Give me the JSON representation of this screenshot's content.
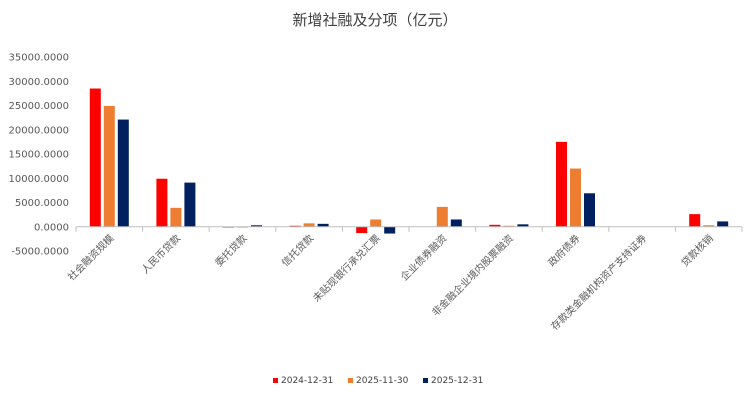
{
  "chart_data": {
    "type": "bar",
    "title": "新增社融及分项（亿元）",
    "xlabel": "",
    "ylabel": "",
    "ylim": [
      -5000,
      35000
    ],
    "yticks": [
      35000,
      30000,
      25000,
      20000,
      15000,
      10000,
      5000,
      0,
      -5000
    ],
    "ytick_labels": [
      "35000.0000",
      "30000.0000",
      "25000.0000",
      "20000.0000",
      "15000.0000",
      "10000.0000",
      "5000.0000",
      "0.0000",
      "-5000.0000"
    ],
    "grid": false,
    "legend_position": "bottom",
    "categories": [
      "社会融资规模",
      "人民币贷款",
      "委托贷款",
      "信托贷款",
      "未贴现银行承兑汇票",
      "企业债券融资",
      "非金融企业境内股票融资",
      "政府债券",
      "存款类金融机构资产支持证券",
      "贷款核销"
    ],
    "series": [
      {
        "name": "2024-12-31",
        "color": "#ff0000",
        "values": [
          28500,
          9900,
          -100,
          200,
          -1300,
          0,
          400,
          17500,
          0,
          2600
        ]
      },
      {
        "name": "2025-11-30",
        "color": "#ed7d31",
        "values": [
          24900,
          3900,
          -50,
          700,
          1500,
          4100,
          200,
          12000,
          0,
          300
        ]
      },
      {
        "name": "2025-12-31",
        "color": "#002060",
        "values": [
          22100,
          9100,
          300,
          600,
          -1400,
          1500,
          500,
          6900,
          0,
          1100
        ]
      }
    ]
  }
}
